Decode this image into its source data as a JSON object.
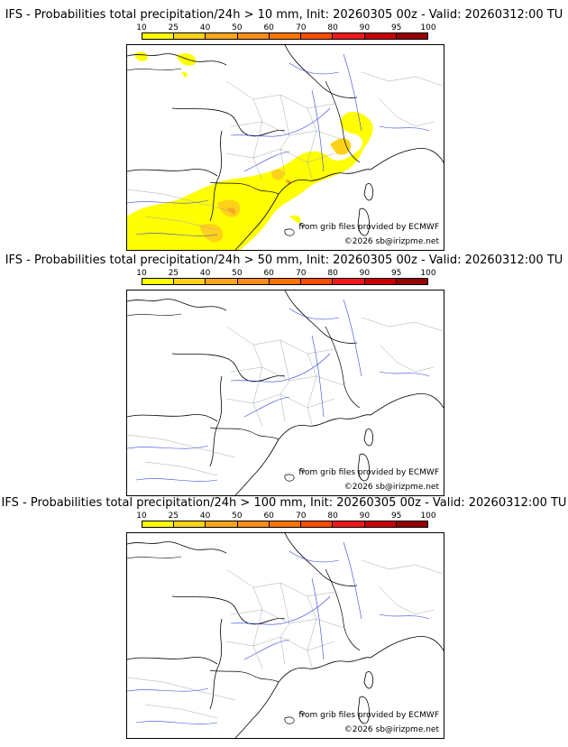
{
  "scale": {
    "labels": [
      "10",
      "25",
      "40",
      "50",
      "60",
      "70",
      "80",
      "90",
      "95",
      "100"
    ],
    "colors": [
      "#ffff00",
      "#ffd11a",
      "#ffa51a",
      "#ff8c1a",
      "#ff7300",
      "#ff4d00",
      "#ee1a1a",
      "#c80000",
      "#960000",
      "#5a0000"
    ]
  },
  "panels": [
    {
      "title": "IFS - Probabilities total precipitation/24h > 10 mm, Init: 20260305 00z - Valid: 20260312:00 TU",
      "credit": "from grib files provided by ECMWF",
      "copyright": "©2026 sb@irizpme.net"
    },
    {
      "title": "IFS - Probabilities total precipitation/24h > 50 mm, Init: 20260305 00z - Valid: 20260312:00 TU",
      "credit": "from grib files provided by ECMWF",
      "copyright": "©2026 sb@irizpme.net"
    },
    {
      "title": "IFS - Probabilities total precipitation/24h > 100 mm, Init: 20260305 00z - Valid: 20260312:00 TU",
      "credit": "from grib files provided by ECMWF",
      "copyright": "©2026 sb@irizpme.net"
    }
  ]
}
